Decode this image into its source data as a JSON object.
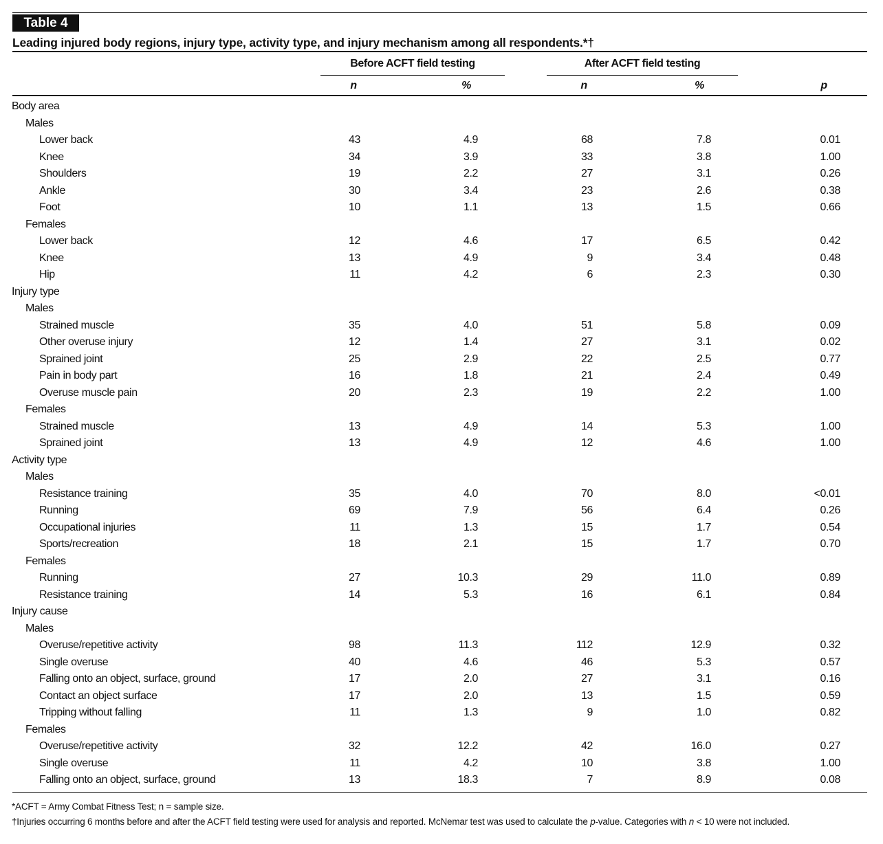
{
  "label": "Table 4",
  "title": "Leading injured body regions, injury type, activity type, and injury mechanism among all respondents.*†",
  "column_groups": [
    "Before ACFT field testing",
    "After ACFT field testing"
  ],
  "columns": [
    "n",
    "%",
    "n",
    "%",
    "p"
  ],
  "sections": [
    {
      "title": "Body area",
      "groups": [
        {
          "title": "Males",
          "rows": [
            [
              "Lower back",
              "43",
              "4.9",
              "68",
              "7.8",
              "0.01"
            ],
            [
              "Knee",
              "34",
              "3.9",
              "33",
              "3.8",
              "1.00"
            ],
            [
              "Shoulders",
              "19",
              "2.2",
              "27",
              "3.1",
              "0.26"
            ],
            [
              "Ankle",
              "30",
              "3.4",
              "23",
              "2.6",
              "0.38"
            ],
            [
              "Foot",
              "10",
              "1.1",
              "13",
              "1.5",
              "0.66"
            ]
          ]
        },
        {
          "title": "Females",
          "rows": [
            [
              "Lower back",
              "12",
              "4.6",
              "17",
              "6.5",
              "0.42"
            ],
            [
              "Knee",
              "13",
              "4.9",
              "9",
              "3.4",
              "0.48"
            ],
            [
              "Hip",
              "11",
              "4.2",
              "6",
              "2.3",
              "0.30"
            ]
          ]
        }
      ]
    },
    {
      "title": "Injury type",
      "groups": [
        {
          "title": "Males",
          "rows": [
            [
              "Strained muscle",
              "35",
              "4.0",
              "51",
              "5.8",
              "0.09"
            ],
            [
              "Other overuse injury",
              "12",
              "1.4",
              "27",
              "3.1",
              "0.02"
            ],
            [
              "Sprained joint",
              "25",
              "2.9",
              "22",
              "2.5",
              "0.77"
            ],
            [
              "Pain in body part",
              "16",
              "1.8",
              "21",
              "2.4",
              "0.49"
            ],
            [
              "Overuse muscle pain",
              "20",
              "2.3",
              "19",
              "2.2",
              "1.00"
            ]
          ]
        },
        {
          "title": "Females",
          "rows": [
            [
              "Strained muscle",
              "13",
              "4.9",
              "14",
              "5.3",
              "1.00"
            ],
            [
              "Sprained joint",
              "13",
              "4.9",
              "12",
              "4.6",
              "1.00"
            ]
          ]
        }
      ]
    },
    {
      "title": "Activity type",
      "groups": [
        {
          "title": "Males",
          "rows": [
            [
              "Resistance training",
              "35",
              "4.0",
              "70",
              "8.0",
              "<0.01"
            ],
            [
              "Running",
              "69",
              "7.9",
              "56",
              "6.4",
              "0.26"
            ],
            [
              "Occupational injuries",
              "11",
              "1.3",
              "15",
              "1.7",
              "0.54"
            ],
            [
              "Sports/recreation",
              "18",
              "2.1",
              "15",
              "1.7",
              "0.70"
            ]
          ]
        },
        {
          "title": "Females",
          "rows": [
            [
              "Running",
              "27",
              "10.3",
              "29",
              "11.0",
              "0.89"
            ],
            [
              "Resistance training",
              "14",
              "5.3",
              "16",
              "6.1",
              "0.84"
            ]
          ]
        }
      ]
    },
    {
      "title": "Injury cause",
      "groups": [
        {
          "title": "Males",
          "rows": [
            [
              "Overuse/repetitive activity",
              "98",
              "11.3",
              "112",
              "12.9",
              "0.32"
            ],
            [
              "Single overuse",
              "40",
              "4.6",
              "46",
              "5.3",
              "0.57"
            ],
            [
              "Falling onto an object, surface, ground",
              "17",
              "2.0",
              "27",
              "3.1",
              "0.16"
            ],
            [
              "Contact an object surface",
              "17",
              "2.0",
              "13",
              "1.5",
              "0.59"
            ],
            [
              "Tripping without falling",
              "11",
              "1.3",
              "9",
              "1.0",
              "0.82"
            ]
          ]
        },
        {
          "title": "Females",
          "rows": [
            [
              "Overuse/repetitive activity",
              "32",
              "12.2",
              "42",
              "16.0",
              "0.27"
            ],
            [
              "Single overuse",
              "11",
              "4.2",
              "10",
              "3.8",
              "1.00"
            ],
            [
              "Falling onto an object, surface, ground",
              "13",
              "18.3",
              "7",
              "8.9",
              "0.08"
            ]
          ]
        }
      ]
    }
  ],
  "footnotes": [
    [
      "*ACFT = Army Combat Fitness Test; n = sample size."
    ],
    [
      "†Injuries occurring 6 months before and after the ACFT field testing were used for analysis and reported. McNemar test was used to calculate the ",
      "p",
      "-value. Categories with ",
      "n",
      " < 10 were not included."
    ]
  ]
}
